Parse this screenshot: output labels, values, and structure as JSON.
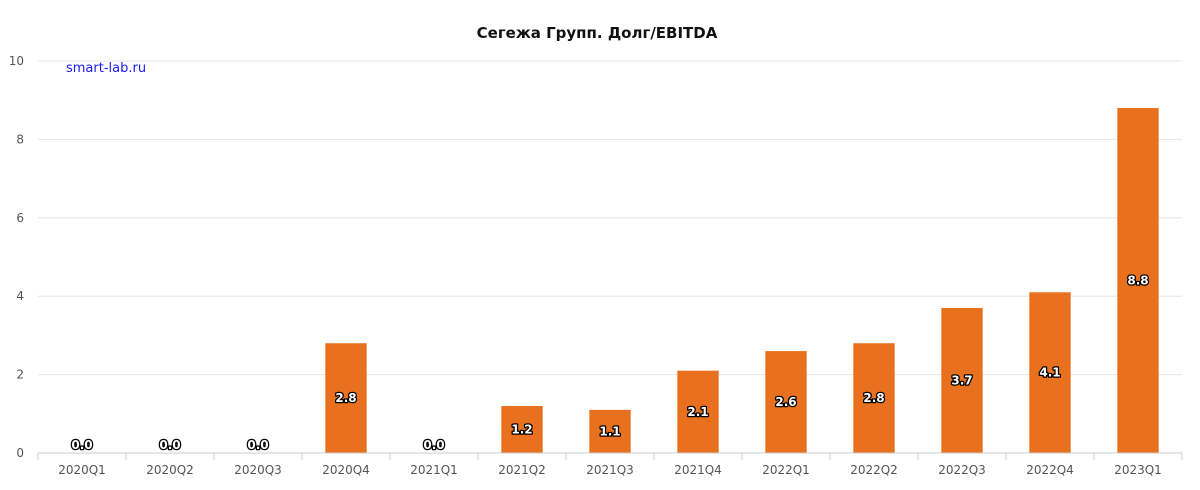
{
  "chart_data": {
    "type": "bar",
    "title": "Сегежа Групп. Долг/EBITDA",
    "watermark": "smart-lab.ru",
    "categories": [
      "2020Q1",
      "2020Q2",
      "2020Q3",
      "2020Q4",
      "2021Q1",
      "2021Q2",
      "2021Q3",
      "2021Q4",
      "2022Q1",
      "2022Q2",
      "2022Q3",
      "2022Q4",
      "2023Q1"
    ],
    "values": [
      0.0,
      0.0,
      0.0,
      2.8,
      0.0,
      1.2,
      1.1,
      2.1,
      2.6,
      2.8,
      3.7,
      4.1,
      8.8
    ],
    "value_labels": [
      "0.0",
      "0.0",
      "0.0",
      "2.8",
      "0.0",
      "1.2",
      "1.1",
      "2.1",
      "2.6",
      "2.8",
      "3.7",
      "4.1",
      "8.8"
    ],
    "ylim": [
      0,
      10
    ],
    "yticks": [
      0,
      2,
      4,
      6,
      8,
      10
    ],
    "xlabel": "",
    "ylabel": "",
    "grid": true,
    "bar_color": "#e8701f"
  }
}
